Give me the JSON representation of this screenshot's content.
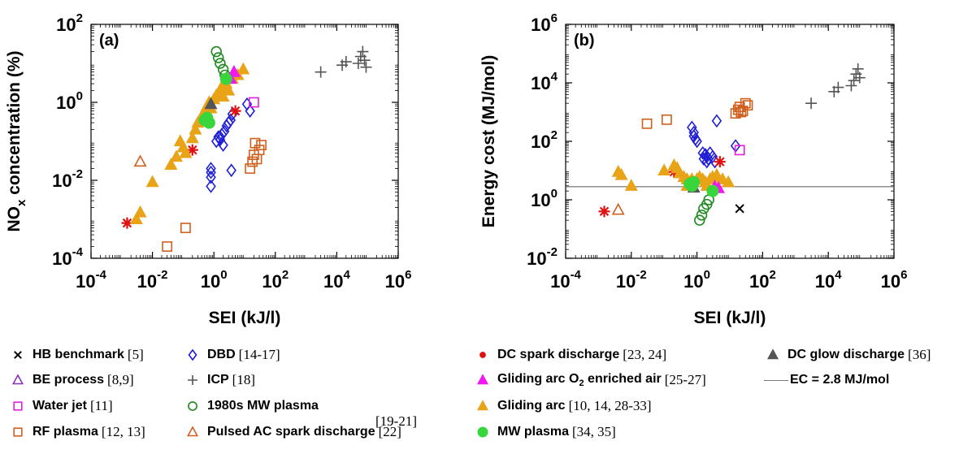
{
  "chart_data": [
    {
      "type": "scatter",
      "panel_label": "(a)",
      "xlabel": "SEI (kJ/l)",
      "ylabel": "NO",
      "ylabel_sub": "x",
      "ylabel_rest": " concentration (%)",
      "x_scale": "log",
      "y_scale": "log",
      "xlim": [
        0.0001,
        1000000
      ],
      "ylim": [
        0.0001,
        100
      ],
      "x_ticks": [
        {
          "v": 0.0001,
          "b": "10",
          "e": "-4"
        },
        {
          "v": 0.01,
          "b": "10",
          "e": "-2"
        },
        {
          "v": 1,
          "b": "10",
          "e": "0"
        },
        {
          "v": 100,
          "b": "10",
          "e": "2"
        },
        {
          "v": 10000,
          "b": "10",
          "e": "4"
        },
        {
          "v": 1000000,
          "b": "10",
          "e": "6"
        }
      ],
      "y_ticks": [
        {
          "v": 0.0001,
          "b": "10",
          "e": "-4"
        },
        {
          "v": 0.01,
          "b": "10",
          "e": "-2"
        },
        {
          "v": 1,
          "b": "10",
          "e": "0"
        },
        {
          "v": 100,
          "b": "10",
          "e": "2"
        }
      ],
      "series": [
        {
          "name": "DBD",
          "marker": "diamond",
          "color": "#1f1fd6",
          "points": [
            [
              0.8,
              0.007
            ],
            [
              0.8,
              0.012
            ],
            [
              0.8,
              0.016
            ],
            [
              0.8,
              0.02
            ],
            [
              3.7,
              0.018
            ],
            [
              1.2,
              0.1
            ],
            [
              1.4,
              0.13
            ],
            [
              1.6,
              0.11
            ],
            [
              1.8,
              0.15
            ],
            [
              2.2,
              0.18
            ],
            [
              2.6,
              0.25
            ],
            [
              3,
              0.3
            ],
            [
              3.5,
              0.35
            ],
            [
              4,
              0.5
            ],
            [
              2,
              0.08
            ],
            [
              15,
              0.6
            ],
            [
              12,
              0.9
            ]
          ]
        },
        {
          "name": "ICP",
          "marker": "plus",
          "color": "#555555",
          "points": [
            [
              3000,
              6
            ],
            [
              15000,
              9
            ],
            [
              20000,
              11
            ],
            [
              50000,
              10
            ],
            [
              60000,
              15
            ],
            [
              70000,
              20
            ],
            [
              80000,
              12
            ],
            [
              90000,
              8
            ]
          ]
        },
        {
          "name": "Water jet",
          "marker": "square",
          "color": "#e020e0",
          "points": [
            [
              20,
              1
            ]
          ]
        },
        {
          "name": "RF plasma",
          "marker": "square",
          "color": "#d0601e",
          "points": [
            [
              0.03,
              0.0002
            ],
            [
              0.12,
              0.0006
            ],
            [
              15,
              0.02
            ],
            [
              18,
              0.03
            ],
            [
              20,
              0.045
            ],
            [
              25,
              0.035
            ],
            [
              30,
              0.06
            ],
            [
              35,
              0.08
            ],
            [
              22,
              0.09
            ]
          ]
        },
        {
          "name": "1980s MW plasma",
          "marker": "circle",
          "color": "#1e8a1e",
          "points": [
            [
              1.2,
              20
            ],
            [
              1.4,
              14
            ],
            [
              1.6,
              10
            ],
            [
              2,
              7
            ],
            [
              2.3,
              5
            ]
          ]
        },
        {
          "name": "Pulsed AC spark discharge",
          "marker": "triangle-open",
          "color": "#d0601e",
          "points": [
            [
              0.004,
              0.03
            ]
          ]
        },
        {
          "name": "DC spark discharge",
          "marker": "star",
          "color": "#e01010",
          "points": [
            [
              0.0015,
              0.0008
            ],
            [
              0.2,
              0.06
            ],
            [
              5,
              0.6
            ]
          ]
        },
        {
          "name": "Gliding arc",
          "marker": "triangle",
          "color": "#e8a317",
          "points": [
            [
              0.003,
              0.001
            ],
            [
              0.004,
              0.0015
            ],
            [
              0.01,
              0.009
            ],
            [
              0.04,
              0.025
            ],
            [
              0.06,
              0.04
            ],
            [
              0.08,
              0.1
            ],
            [
              0.1,
              0.07
            ],
            [
              0.12,
              0.05
            ],
            [
              0.2,
              0.12
            ],
            [
              0.25,
              0.2
            ],
            [
              0.3,
              0.3
            ],
            [
              0.4,
              0.4
            ],
            [
              0.5,
              0.6
            ],
            [
              0.6,
              0.8
            ],
            [
              0.7,
              1
            ],
            [
              1,
              1.2
            ],
            [
              1.2,
              1.5
            ],
            [
              1.5,
              1.8
            ],
            [
              1.8,
              2.5
            ],
            [
              2.5,
              3
            ],
            [
              3,
              2
            ],
            [
              4,
              4
            ],
            [
              6,
              5
            ],
            [
              9,
              7
            ],
            [
              2,
              1.4
            ],
            [
              0.8,
              0.7
            ]
          ]
        },
        {
          "name": "Gliding arc O2 enriched air",
          "marker": "triangle",
          "color": "#f018f0",
          "points": [
            [
              4.5,
              6
            ],
            [
              3.5,
              4
            ]
          ]
        },
        {
          "name": "DC glow discharge",
          "marker": "triangle",
          "color": "#555555",
          "points": [
            [
              0.8,
              0.9
            ]
          ]
        },
        {
          "name": "MW plasma",
          "marker": "circle-fill",
          "color": "#39d53c",
          "points": [
            [
              0.5,
              0.35
            ],
            [
              0.6,
              0.4
            ],
            [
              0.7,
              0.3
            ],
            [
              2.5,
              4
            ]
          ]
        }
      ]
    },
    {
      "type": "scatter",
      "panel_label": "(b)",
      "xlabel": "SEI (kJ/l)",
      "ylabel": "Energy cost (MJ/mol)",
      "x_scale": "log",
      "y_scale": "log",
      "xlim": [
        0.0001,
        1000000
      ],
      "ylim": [
        0.01,
        1000000
      ],
      "x_ticks": [
        {
          "v": 0.0001,
          "b": "10",
          "e": "-4"
        },
        {
          "v": 0.01,
          "b": "10",
          "e": "-2"
        },
        {
          "v": 1,
          "b": "10",
          "e": "0"
        },
        {
          "v": 100,
          "b": "10",
          "e": "2"
        },
        {
          "v": 10000,
          "b": "10",
          "e": "4"
        },
        {
          "v": 1000000,
          "b": "10",
          "e": "6"
        }
      ],
      "y_ticks": [
        {
          "v": 0.01,
          "b": "10",
          "e": "-2"
        },
        {
          "v": 1,
          "b": "10",
          "e": "0"
        },
        {
          "v": 100,
          "b": "10",
          "e": "2"
        },
        {
          "v": 10000,
          "b": "10",
          "e": "4"
        },
        {
          "v": 1000000,
          "b": "10",
          "e": "6"
        }
      ],
      "hline": {
        "name": "EC = 2.8 MJ/mol",
        "y": 2.8,
        "color": "#777777"
      },
      "series": [
        {
          "name": "HB benchmark",
          "marker": "x",
          "color": "#000000",
          "points": [
            [
              20,
              0.5
            ]
          ]
        },
        {
          "name": "DBD",
          "marker": "diamond",
          "color": "#1f1fd6",
          "points": [
            [
              0.7,
              300
            ],
            [
              0.8,
              200
            ],
            [
              0.8,
              150
            ],
            [
              0.9,
              120
            ],
            [
              1,
              100
            ],
            [
              4,
              500
            ],
            [
              1.5,
              40
            ],
            [
              1.8,
              35
            ],
            [
              2,
              30
            ],
            [
              2.2,
              25
            ],
            [
              2.5,
              40
            ],
            [
              3,
              30
            ],
            [
              1.6,
              25
            ],
            [
              2,
              20
            ],
            [
              3.5,
              20
            ],
            [
              15,
              70
            ]
          ]
        },
        {
          "name": "ICP",
          "marker": "plus",
          "color": "#555555",
          "points": [
            [
              3000,
              2000
            ],
            [
              15000,
              5000
            ],
            [
              20000,
              7000
            ],
            [
              50000,
              8000
            ],
            [
              60000,
              12000
            ],
            [
              70000,
              20000
            ],
            [
              80000,
              30000
            ],
            [
              90000,
              15000
            ]
          ]
        },
        {
          "name": "Water jet",
          "marker": "square",
          "color": "#e020e0",
          "points": [
            [
              20,
              50
            ]
          ]
        },
        {
          "name": "RF plasma",
          "marker": "square",
          "color": "#d0601e",
          "points": [
            [
              0.03,
              400
            ],
            [
              0.12,
              550
            ],
            [
              15,
              900
            ],
            [
              18,
              1200
            ],
            [
              20,
              1500
            ],
            [
              25,
              1100
            ],
            [
              30,
              2000
            ],
            [
              35,
              1700
            ],
            [
              22,
              1000
            ]
          ]
        },
        {
          "name": "1980s MW plasma",
          "marker": "circle",
          "color": "#1e8a1e",
          "points": [
            [
              1.2,
              0.2
            ],
            [
              1.4,
              0.3
            ],
            [
              1.6,
              0.5
            ],
            [
              2,
              0.7
            ],
            [
              2.3,
              1
            ]
          ]
        },
        {
          "name": "Pulsed AC spark discharge",
          "marker": "triangle-open",
          "color": "#d0601e",
          "points": [
            [
              0.004,
              0.45
            ]
          ]
        },
        {
          "name": "DC spark discharge",
          "marker": "star",
          "color": "#e01010",
          "points": [
            [
              0.0015,
              0.4
            ],
            [
              0.2,
              9
            ],
            [
              5,
              20
            ]
          ]
        },
        {
          "name": "Gliding arc",
          "marker": "triangle",
          "color": "#e8a317",
          "points": [
            [
              0.004,
              9
            ],
            [
              0.005,
              7
            ],
            [
              0.01,
              3
            ],
            [
              0.1,
              10
            ],
            [
              0.2,
              15
            ],
            [
              0.25,
              12
            ],
            [
              0.3,
              8
            ],
            [
              0.4,
              6
            ],
            [
              0.5,
              5
            ],
            [
              0.6,
              4
            ],
            [
              0.7,
              5
            ],
            [
              1,
              5
            ],
            [
              1.2,
              6
            ],
            [
              1.5,
              5
            ],
            [
              1.8,
              4
            ],
            [
              2.5,
              5
            ],
            [
              3,
              6
            ],
            [
              4,
              7
            ],
            [
              6,
              5
            ],
            [
              9,
              4
            ],
            [
              2,
              3
            ],
            [
              0.5,
              3
            ]
          ]
        },
        {
          "name": "Gliding arc O2 enriched air",
          "marker": "triangle",
          "color": "#f018f0",
          "points": [
            [
              4.5,
              2.5
            ],
            [
              3.5,
              2.8
            ]
          ]
        },
        {
          "name": "DC glow discharge",
          "marker": "triangle",
          "color": "#555555",
          "points": [
            [
              0.8,
              2.6
            ]
          ]
        },
        {
          "name": "MW plasma",
          "marker": "circle-fill",
          "color": "#39d53c",
          "points": [
            [
              0.6,
              3.5
            ],
            [
              0.7,
              3
            ],
            [
              0.8,
              4
            ],
            [
              3,
              2
            ]
          ]
        }
      ]
    }
  ],
  "legend": {
    "items": [
      {
        "name": "legend-hb-benchmark",
        "marker": "x",
        "color": "#000000",
        "label": "HB benchmark",
        "ref": "[5]"
      },
      {
        "name": "legend-be-process",
        "marker": "triangle-open",
        "color": "#8a2fc0",
        "label": "BE process",
        "ref": "[8,9]"
      },
      {
        "name": "legend-water-jet",
        "marker": "square",
        "color": "#e020e0",
        "label": "Water jet",
        "ref": "[11]"
      },
      {
        "name": "legend-rf-plasma",
        "marker": "square",
        "color": "#d0601e",
        "label": "RF plasma",
        "ref": "[12, 13]"
      },
      {
        "name": "legend-dbd",
        "marker": "diamond",
        "color": "#1f1fd6",
        "label": "DBD",
        "ref": "[14-17]"
      },
      {
        "name": "legend-icp",
        "marker": "plus",
        "color": "#555555",
        "label": "ICP",
        "ref": "[18]"
      },
      {
        "name": "legend-1980s-mw",
        "marker": "circle",
        "color": "#1e8a1e",
        "label": "1980s MW plasma",
        "ref": ""
      },
      {
        "name": "legend-pulsed-ac",
        "marker": "triangle-open",
        "color": "#d0601e",
        "label": "Pulsed AC spark discharge",
        "ref": "[22]"
      },
      {
        "name": "legend-dc-spark",
        "marker": "dot",
        "color": "#e01010",
        "label": "DC spark discharge",
        "ref": "[23, 24]"
      },
      {
        "name": "legend-gliding-o2",
        "marker": "triangle",
        "color": "#f018f0",
        "label": "Gliding arc O",
        "sub": "2",
        "label_rest": " enriched air",
        "ref": "[25-27]"
      },
      {
        "name": "legend-gliding-arc",
        "marker": "triangle",
        "color": "#e8a317",
        "label": "Gliding arc",
        "ref": "[10, 14, 28-33]"
      },
      {
        "name": "legend-mw-plasma",
        "marker": "circle-fill",
        "color": "#39d53c",
        "label": "MW plasma",
        "ref": "[34, 35]"
      },
      {
        "name": "legend-dc-glow",
        "marker": "triangle",
        "color": "#555555",
        "label": "DC glow discharge",
        "ref": "[36]"
      },
      {
        "name": "legend-ec-line",
        "marker": "line",
        "color": "#777777",
        "label": "EC = 2.8 MJ/mol",
        "ref": ""
      }
    ],
    "mw1980_ref": "[19-21]"
  }
}
